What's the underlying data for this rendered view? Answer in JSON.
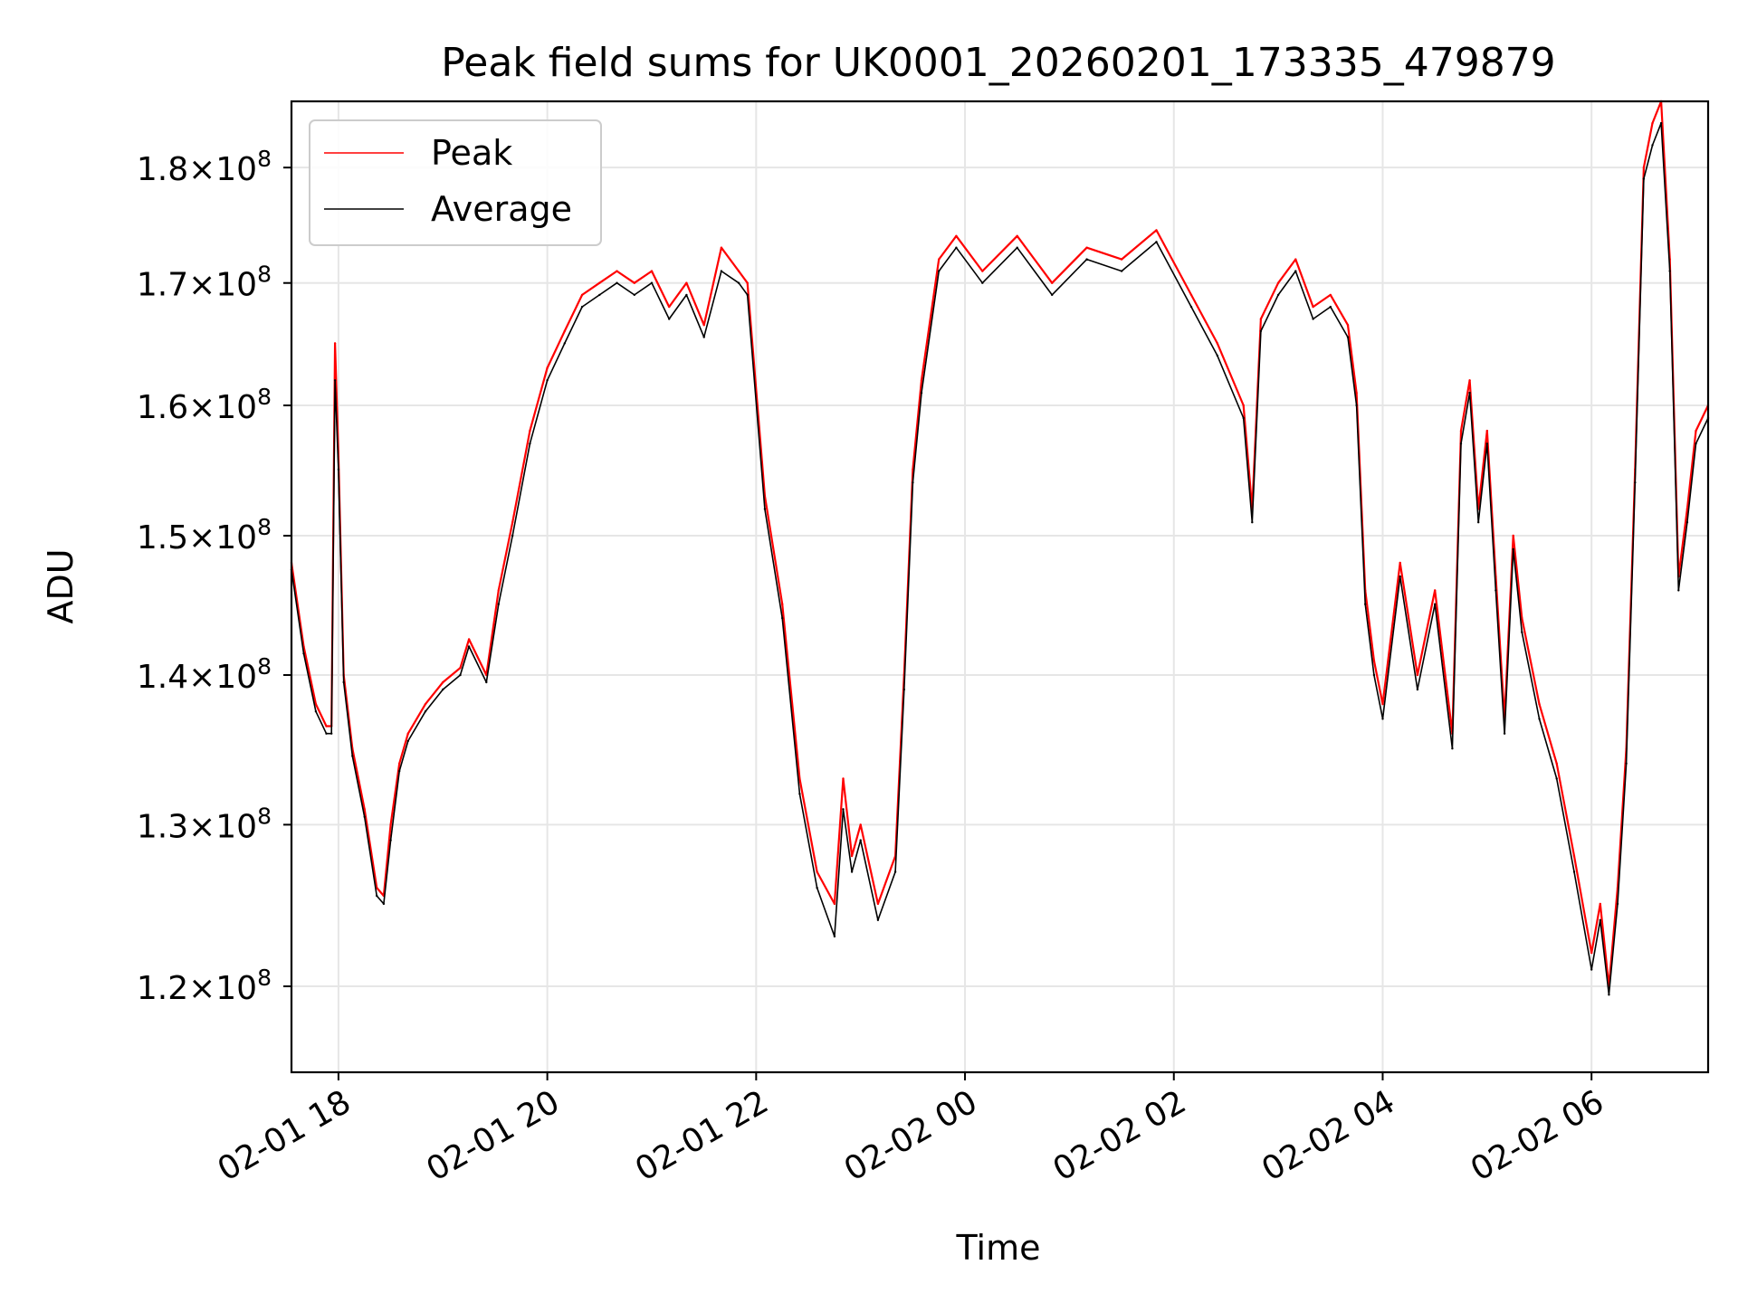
{
  "chart_data": {
    "type": "line",
    "title": "Peak field sums for UK0001_20260201_173335_479879",
    "xlabel": "Time",
    "ylabel": "ADU",
    "y_scale": "log",
    "grid": true,
    "legend_position": "top-left",
    "xlim": [
      "2026-02-01 17:33",
      "2026-02-02 07:07"
    ],
    "ylim": [
      115000000,
      186000000
    ],
    "x_ticks": [
      {
        "value": "2026-02-01 18:00",
        "label": "02-01 18"
      },
      {
        "value": "2026-02-01 20:00",
        "label": "02-01 20"
      },
      {
        "value": "2026-02-01 22:00",
        "label": "02-01 22"
      },
      {
        "value": "2026-02-02 00:00",
        "label": "02-02 00"
      },
      {
        "value": "2026-02-02 02:00",
        "label": "02-02 02"
      },
      {
        "value": "2026-02-02 04:00",
        "label": "02-02 04"
      },
      {
        "value": "2026-02-02 06:00",
        "label": "02-02 06"
      }
    ],
    "y_ticks": [
      {
        "value": 120000000,
        "mant": "1.2",
        "exp": "8"
      },
      {
        "value": 130000000,
        "mant": "1.3",
        "exp": "8"
      },
      {
        "value": 140000000,
        "mant": "1.4",
        "exp": "8"
      },
      {
        "value": 150000000,
        "mant": "1.5",
        "exp": "8"
      },
      {
        "value": 160000000,
        "mant": "1.6",
        "exp": "8"
      },
      {
        "value": 170000000,
        "mant": "1.7",
        "exp": "8"
      },
      {
        "value": 180000000,
        "mant": "1.8",
        "exp": "8"
      }
    ],
    "series": [
      {
        "name": "Peak",
        "color": "#ff0000",
        "x": [
          "2026-02-01 17:33",
          "2026-02-01 17:40",
          "2026-02-01 17:47",
          "2026-02-01 17:53",
          "2026-02-01 17:56",
          "2026-02-01 17:58",
          "2026-02-01 18:00",
          "2026-02-01 18:03",
          "2026-02-01 18:08",
          "2026-02-01 18:15",
          "2026-02-01 18:22",
          "2026-02-01 18:26",
          "2026-02-01 18:30",
          "2026-02-01 18:35",
          "2026-02-01 18:40",
          "2026-02-01 18:50",
          "2026-02-01 19:00",
          "2026-02-01 19:10",
          "2026-02-01 19:15",
          "2026-02-01 19:25",
          "2026-02-01 19:32",
          "2026-02-01 19:40",
          "2026-02-01 19:50",
          "2026-02-01 20:00",
          "2026-02-01 20:10",
          "2026-02-01 20:20",
          "2026-02-01 20:30",
          "2026-02-01 20:40",
          "2026-02-01 20:50",
          "2026-02-01 21:00",
          "2026-02-01 21:10",
          "2026-02-01 21:20",
          "2026-02-01 21:30",
          "2026-02-01 21:40",
          "2026-02-01 21:50",
          "2026-02-01 21:55",
          "2026-02-01 22:05",
          "2026-02-01 22:15",
          "2026-02-01 22:25",
          "2026-02-01 22:35",
          "2026-02-01 22:45",
          "2026-02-01 22:50",
          "2026-02-01 22:55",
          "2026-02-01 23:00",
          "2026-02-01 23:10",
          "2026-02-01 23:20",
          "2026-02-01 23:25",
          "2026-02-01 23:30",
          "2026-02-01 23:35",
          "2026-02-01 23:45",
          "2026-02-01 23:55",
          "2026-02-02 00:10",
          "2026-02-02 00:30",
          "2026-02-02 00:50",
          "2026-02-02 01:10",
          "2026-02-02 01:30",
          "2026-02-02 01:50",
          "2026-02-02 02:10",
          "2026-02-02 02:25",
          "2026-02-02 02:40",
          "2026-02-02 02:45",
          "2026-02-02 02:50",
          "2026-02-02 03:00",
          "2026-02-02 03:10",
          "2026-02-02 03:20",
          "2026-02-02 03:30",
          "2026-02-02 03:40",
          "2026-02-02 03:45",
          "2026-02-02 03:50",
          "2026-02-02 03:55",
          "2026-02-02 04:00",
          "2026-02-02 04:10",
          "2026-02-02 04:20",
          "2026-02-02 04:30",
          "2026-02-02 04:40",
          "2026-02-02 04:45",
          "2026-02-02 04:50",
          "2026-02-02 04:55",
          "2026-02-02 05:00",
          "2026-02-02 05:05",
          "2026-02-02 05:10",
          "2026-02-02 05:15",
          "2026-02-02 05:20",
          "2026-02-02 05:30",
          "2026-02-02 05:40",
          "2026-02-02 05:50",
          "2026-02-02 06:00",
          "2026-02-02 06:05",
          "2026-02-02 06:10",
          "2026-02-02 06:15",
          "2026-02-02 06:20",
          "2026-02-02 06:25",
          "2026-02-02 06:30",
          "2026-02-02 06:35",
          "2026-02-02 06:40",
          "2026-02-02 06:45",
          "2026-02-02 06:50",
          "2026-02-02 06:55",
          "2026-02-02 07:00",
          "2026-02-02 07:07"
        ],
        "values": [
          148000000,
          142000000,
          138000000,
          136500000,
          136500000,
          165000000,
          156000000,
          140000000,
          135000000,
          131000000,
          126000000,
          125500000,
          130000000,
          134000000,
          136000000,
          138000000,
          139500000,
          140500000,
          142500000,
          140000000,
          146000000,
          151000000,
          158000000,
          163000000,
          166000000,
          169000000,
          170000000,
          171000000,
          170000000,
          171000000,
          168000000,
          170000000,
          166500000,
          173000000,
          171000000,
          170000000,
          153000000,
          145000000,
          133000000,
          127000000,
          125000000,
          133000000,
          128000000,
          130000000,
          125000000,
          128000000,
          140000000,
          155000000,
          162000000,
          172000000,
          174000000,
          171000000,
          174000000,
          170000000,
          173000000,
          172000000,
          174500000,
          169000000,
          165000000,
          160000000,
          152000000,
          167000000,
          170000000,
          172000000,
          168000000,
          169000000,
          166500000,
          161000000,
          146000000,
          141000000,
          138000000,
          148000000,
          140000000,
          146000000,
          136000000,
          158000000,
          162000000,
          152000000,
          158000000,
          147000000,
          137000000,
          150000000,
          144000000,
          138000000,
          134000000,
          128000000,
          122000000,
          125000000,
          120000000,
          126000000,
          135000000,
          155000000,
          180000000,
          184000000,
          186000000,
          172000000,
          147000000,
          152000000,
          158000000,
          160000000
        ]
      },
      {
        "name": "Average",
        "color": "#000000",
        "x": [
          "2026-02-01 17:33",
          "2026-02-01 17:40",
          "2026-02-01 17:47",
          "2026-02-01 17:53",
          "2026-02-01 17:56",
          "2026-02-01 17:58",
          "2026-02-01 18:00",
          "2026-02-01 18:03",
          "2026-02-01 18:08",
          "2026-02-01 18:15",
          "2026-02-01 18:22",
          "2026-02-01 18:26",
          "2026-02-01 18:30",
          "2026-02-01 18:35",
          "2026-02-01 18:40",
          "2026-02-01 18:50",
          "2026-02-01 19:00",
          "2026-02-01 19:10",
          "2026-02-01 19:15",
          "2026-02-01 19:25",
          "2026-02-01 19:32",
          "2026-02-01 19:40",
          "2026-02-01 19:50",
          "2026-02-01 20:00",
          "2026-02-01 20:10",
          "2026-02-01 20:20",
          "2026-02-01 20:30",
          "2026-02-01 20:40",
          "2026-02-01 20:50",
          "2026-02-01 21:00",
          "2026-02-01 21:10",
          "2026-02-01 21:20",
          "2026-02-01 21:30",
          "2026-02-01 21:40",
          "2026-02-01 21:50",
          "2026-02-01 21:55",
          "2026-02-01 22:05",
          "2026-02-01 22:15",
          "2026-02-01 22:25",
          "2026-02-01 22:35",
          "2026-02-01 22:45",
          "2026-02-01 22:50",
          "2026-02-01 22:55",
          "2026-02-01 23:00",
          "2026-02-01 23:10",
          "2026-02-01 23:20",
          "2026-02-01 23:25",
          "2026-02-01 23:30",
          "2026-02-01 23:35",
          "2026-02-01 23:45",
          "2026-02-01 23:55",
          "2026-02-02 00:10",
          "2026-02-02 00:30",
          "2026-02-02 00:50",
          "2026-02-02 01:10",
          "2026-02-02 01:30",
          "2026-02-02 01:50",
          "2026-02-02 02:10",
          "2026-02-02 02:25",
          "2026-02-02 02:40",
          "2026-02-02 02:45",
          "2026-02-02 02:50",
          "2026-02-02 03:00",
          "2026-02-02 03:10",
          "2026-02-02 03:20",
          "2026-02-02 03:30",
          "2026-02-02 03:40",
          "2026-02-02 03:45",
          "2026-02-02 03:50",
          "2026-02-02 03:55",
          "2026-02-02 04:00",
          "2026-02-02 04:10",
          "2026-02-02 04:20",
          "2026-02-02 04:30",
          "2026-02-02 04:40",
          "2026-02-02 04:45",
          "2026-02-02 04:50",
          "2026-02-02 04:55",
          "2026-02-02 05:00",
          "2026-02-02 05:05",
          "2026-02-02 05:10",
          "2026-02-02 05:15",
          "2026-02-02 05:20",
          "2026-02-02 05:30",
          "2026-02-02 05:40",
          "2026-02-02 05:50",
          "2026-02-02 06:00",
          "2026-02-02 06:05",
          "2026-02-02 06:10",
          "2026-02-02 06:15",
          "2026-02-02 06:20",
          "2026-02-02 06:25",
          "2026-02-02 06:30",
          "2026-02-02 06:35",
          "2026-02-02 06:40",
          "2026-02-02 06:45",
          "2026-02-02 06:50",
          "2026-02-02 06:55",
          "2026-02-02 07:00",
          "2026-02-02 07:07"
        ],
        "values": [
          147500000,
          141500000,
          137500000,
          136000000,
          136000000,
          162000000,
          155000000,
          139500000,
          134500000,
          130500000,
          125500000,
          125000000,
          129000000,
          133500000,
          135500000,
          137500000,
          139000000,
          140000000,
          142000000,
          139500000,
          145000000,
          150000000,
          157000000,
          162000000,
          165000000,
          168000000,
          169000000,
          170000000,
          169000000,
          170000000,
          167000000,
          169000000,
          165500000,
          171000000,
          170000000,
          169000000,
          152000000,
          144000000,
          132000000,
          126000000,
          123000000,
          131000000,
          127000000,
          129000000,
          124000000,
          127000000,
          139000000,
          154000000,
          161000000,
          171000000,
          173000000,
          170000000,
          173000000,
          169000000,
          172000000,
          171000000,
          173500000,
          168000000,
          164000000,
          159000000,
          151000000,
          166000000,
          169000000,
          171000000,
          167000000,
          168000000,
          165500000,
          160000000,
          145000000,
          140000000,
          137000000,
          147000000,
          139000000,
          145000000,
          135000000,
          157000000,
          161000000,
          151000000,
          157000000,
          146000000,
          136000000,
          149000000,
          143000000,
          137000000,
          133000000,
          127000000,
          121000000,
          124000000,
          119500000,
          125000000,
          134000000,
          154000000,
          179000000,
          182000000,
          184000000,
          171000000,
          146000000,
          151000000,
          157000000,
          159000000
        ]
      }
    ]
  }
}
